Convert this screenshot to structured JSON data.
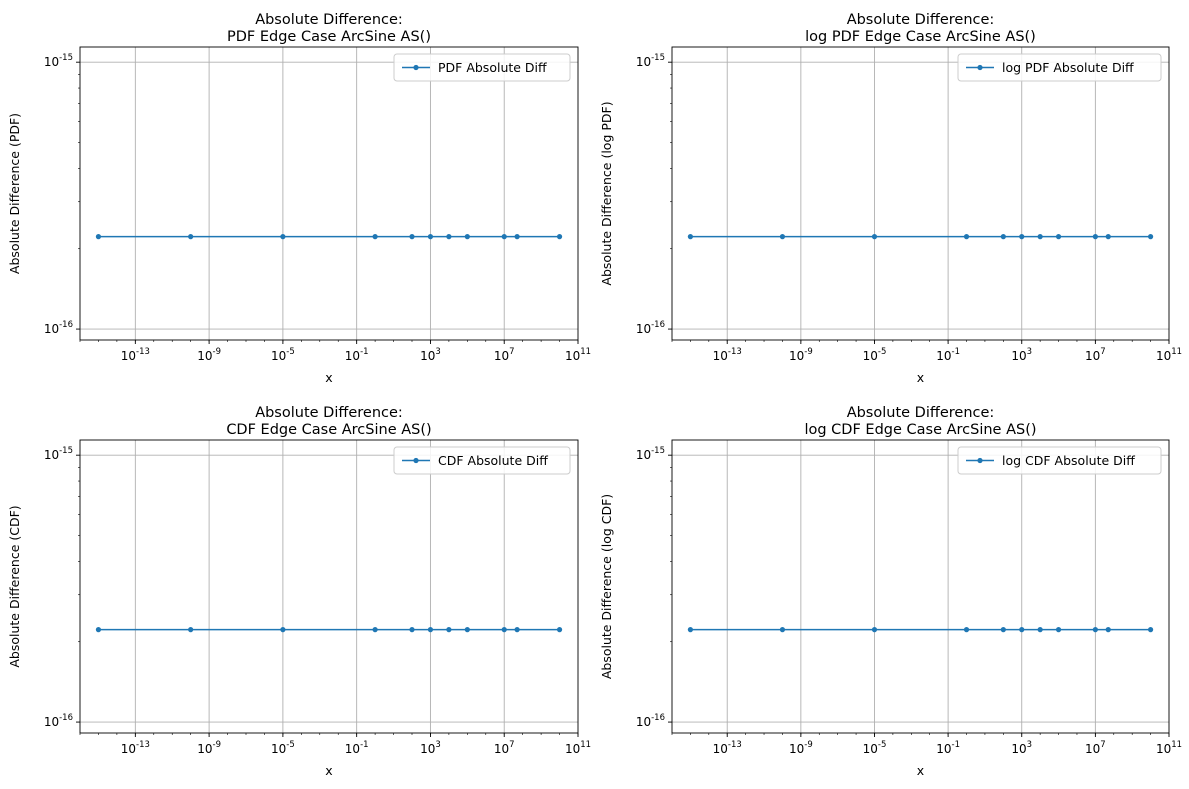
{
  "chart_data": [
    {
      "type": "line",
      "title_line1": "Absolute Difference:",
      "title_line2": "PDF Edge Case ArcSine AS()",
      "xlabel": "x",
      "ylabel": "Absolute Difference (PDF)",
      "x_scale": "log",
      "y_scale": "log",
      "xlim": [
        1e-16,
        100000000000.0
      ],
      "ylim": [
        9.1e-17,
        1.14e-15
      ],
      "x_ticks": [
        {
          "exp": "-13",
          "value": 1e-13
        },
        {
          "exp": "-9",
          "value": 1e-09
        },
        {
          "exp": "-5",
          "value": 1e-05
        },
        {
          "exp": "-1",
          "value": 0.1
        },
        {
          "exp": "3",
          "value": 1000
        },
        {
          "exp": "7",
          "value": 10000000.0
        },
        {
          "exp": "11",
          "value": 100000000000.0
        }
      ],
      "y_ticks": [
        {
          "exp": "-16",
          "value": 1e-16
        },
        {
          "exp": "-15",
          "value": 1e-15
        }
      ],
      "grid": true,
      "legend_position": "upper right",
      "series": [
        {
          "name": "PDF Absolute Diff",
          "color": "#1f77b4",
          "marker": "circle",
          "x": [
            1e-15,
            1e-10,
            1e-05,
            1,
            100,
            1000,
            10000,
            100000,
            10000000.0,
            50000000.0,
            10000000000.0
          ],
          "y": [
            2.22e-16,
            2.22e-16,
            2.22e-16,
            2.22e-16,
            2.22e-16,
            2.22e-16,
            2.22e-16,
            2.22e-16,
            2.22e-16,
            2.22e-16,
            2.22e-16
          ]
        }
      ]
    },
    {
      "type": "line",
      "title_line1": "Absolute Difference:",
      "title_line2": "log PDF Edge Case ArcSine AS()",
      "xlabel": "x",
      "ylabel": "Absolute Difference (log PDF)",
      "x_scale": "log",
      "y_scale": "log",
      "xlim": [
        1e-16,
        100000000000.0
      ],
      "ylim": [
        9.1e-17,
        1.14e-15
      ],
      "x_ticks": [
        {
          "exp": "-13",
          "value": 1e-13
        },
        {
          "exp": "-9",
          "value": 1e-09
        },
        {
          "exp": "-5",
          "value": 1e-05
        },
        {
          "exp": "-1",
          "value": 0.1
        },
        {
          "exp": "3",
          "value": 1000
        },
        {
          "exp": "7",
          "value": 10000000.0
        },
        {
          "exp": "11",
          "value": 100000000000.0
        }
      ],
      "y_ticks": [
        {
          "exp": "-16",
          "value": 1e-16
        },
        {
          "exp": "-15",
          "value": 1e-15
        }
      ],
      "grid": true,
      "legend_position": "upper right",
      "series": [
        {
          "name": "log PDF Absolute Diff",
          "color": "#1f77b4",
          "marker": "circle",
          "x": [
            1e-15,
            1e-10,
            1e-05,
            1,
            100,
            1000,
            10000,
            100000,
            10000000.0,
            50000000.0,
            10000000000.0
          ],
          "y": [
            2.22e-16,
            2.22e-16,
            2.22e-16,
            2.22e-16,
            2.22e-16,
            2.22e-16,
            2.22e-16,
            2.22e-16,
            2.22e-16,
            2.22e-16,
            2.22e-16
          ]
        }
      ]
    },
    {
      "type": "line",
      "title_line1": "Absolute Difference:",
      "title_line2": "CDF Edge Case ArcSine AS()",
      "xlabel": "x",
      "ylabel": "Absolute Difference (CDF)",
      "x_scale": "log",
      "y_scale": "log",
      "xlim": [
        1e-16,
        100000000000.0
      ],
      "ylim": [
        9.1e-17,
        1.14e-15
      ],
      "x_ticks": [
        {
          "exp": "-13",
          "value": 1e-13
        },
        {
          "exp": "-9",
          "value": 1e-09
        },
        {
          "exp": "-5",
          "value": 1e-05
        },
        {
          "exp": "-1",
          "value": 0.1
        },
        {
          "exp": "3",
          "value": 1000
        },
        {
          "exp": "7",
          "value": 10000000.0
        },
        {
          "exp": "11",
          "value": 100000000000.0
        }
      ],
      "y_ticks": [
        {
          "exp": "-16",
          "value": 1e-16
        },
        {
          "exp": "-15",
          "value": 1e-15
        }
      ],
      "grid": true,
      "legend_position": "upper right",
      "series": [
        {
          "name": "CDF Absolute Diff",
          "color": "#1f77b4",
          "marker": "circle",
          "x": [
            1e-15,
            1e-10,
            1e-05,
            1,
            100,
            1000,
            10000,
            100000,
            10000000.0,
            50000000.0,
            10000000000.0
          ],
          "y": [
            2.22e-16,
            2.22e-16,
            2.22e-16,
            2.22e-16,
            2.22e-16,
            2.22e-16,
            2.22e-16,
            2.22e-16,
            2.22e-16,
            2.22e-16,
            2.22e-16
          ]
        }
      ]
    },
    {
      "type": "line",
      "title_line1": "Absolute Difference:",
      "title_line2": "log CDF Edge Case ArcSine AS()",
      "xlabel": "x",
      "ylabel": "Absolute Difference (log CDF)",
      "x_scale": "log",
      "y_scale": "log",
      "xlim": [
        1e-16,
        100000000000.0
      ],
      "ylim": [
        9.1e-17,
        1.14e-15
      ],
      "x_ticks": [
        {
          "exp": "-13",
          "value": 1e-13
        },
        {
          "exp": "-9",
          "value": 1e-09
        },
        {
          "exp": "-5",
          "value": 1e-05
        },
        {
          "exp": "-1",
          "value": 0.1
        },
        {
          "exp": "3",
          "value": 1000
        },
        {
          "exp": "7",
          "value": 10000000.0
        },
        {
          "exp": "11",
          "value": 100000000000.0
        }
      ],
      "y_ticks": [
        {
          "exp": "-16",
          "value": 1e-16
        },
        {
          "exp": "-15",
          "value": 1e-15
        }
      ],
      "grid": true,
      "legend_position": "upper right",
      "series": [
        {
          "name": "log CDF Absolute Diff",
          "color": "#1f77b4",
          "marker": "circle",
          "x": [
            1e-15,
            1e-10,
            1e-05,
            1,
            100,
            1000,
            10000,
            100000,
            10000000.0,
            50000000.0,
            10000000000.0
          ],
          "y": [
            2.22e-16,
            2.22e-16,
            2.22e-16,
            2.22e-16,
            2.22e-16,
            2.22e-16,
            2.22e-16,
            2.22e-16,
            2.22e-16,
            2.22e-16,
            2.22e-16
          ]
        }
      ]
    }
  ],
  "tick_base": "10",
  "colors": {
    "axis": "#000000",
    "grid": "#b0b0b0",
    "legend_border": "#cccccc"
  }
}
